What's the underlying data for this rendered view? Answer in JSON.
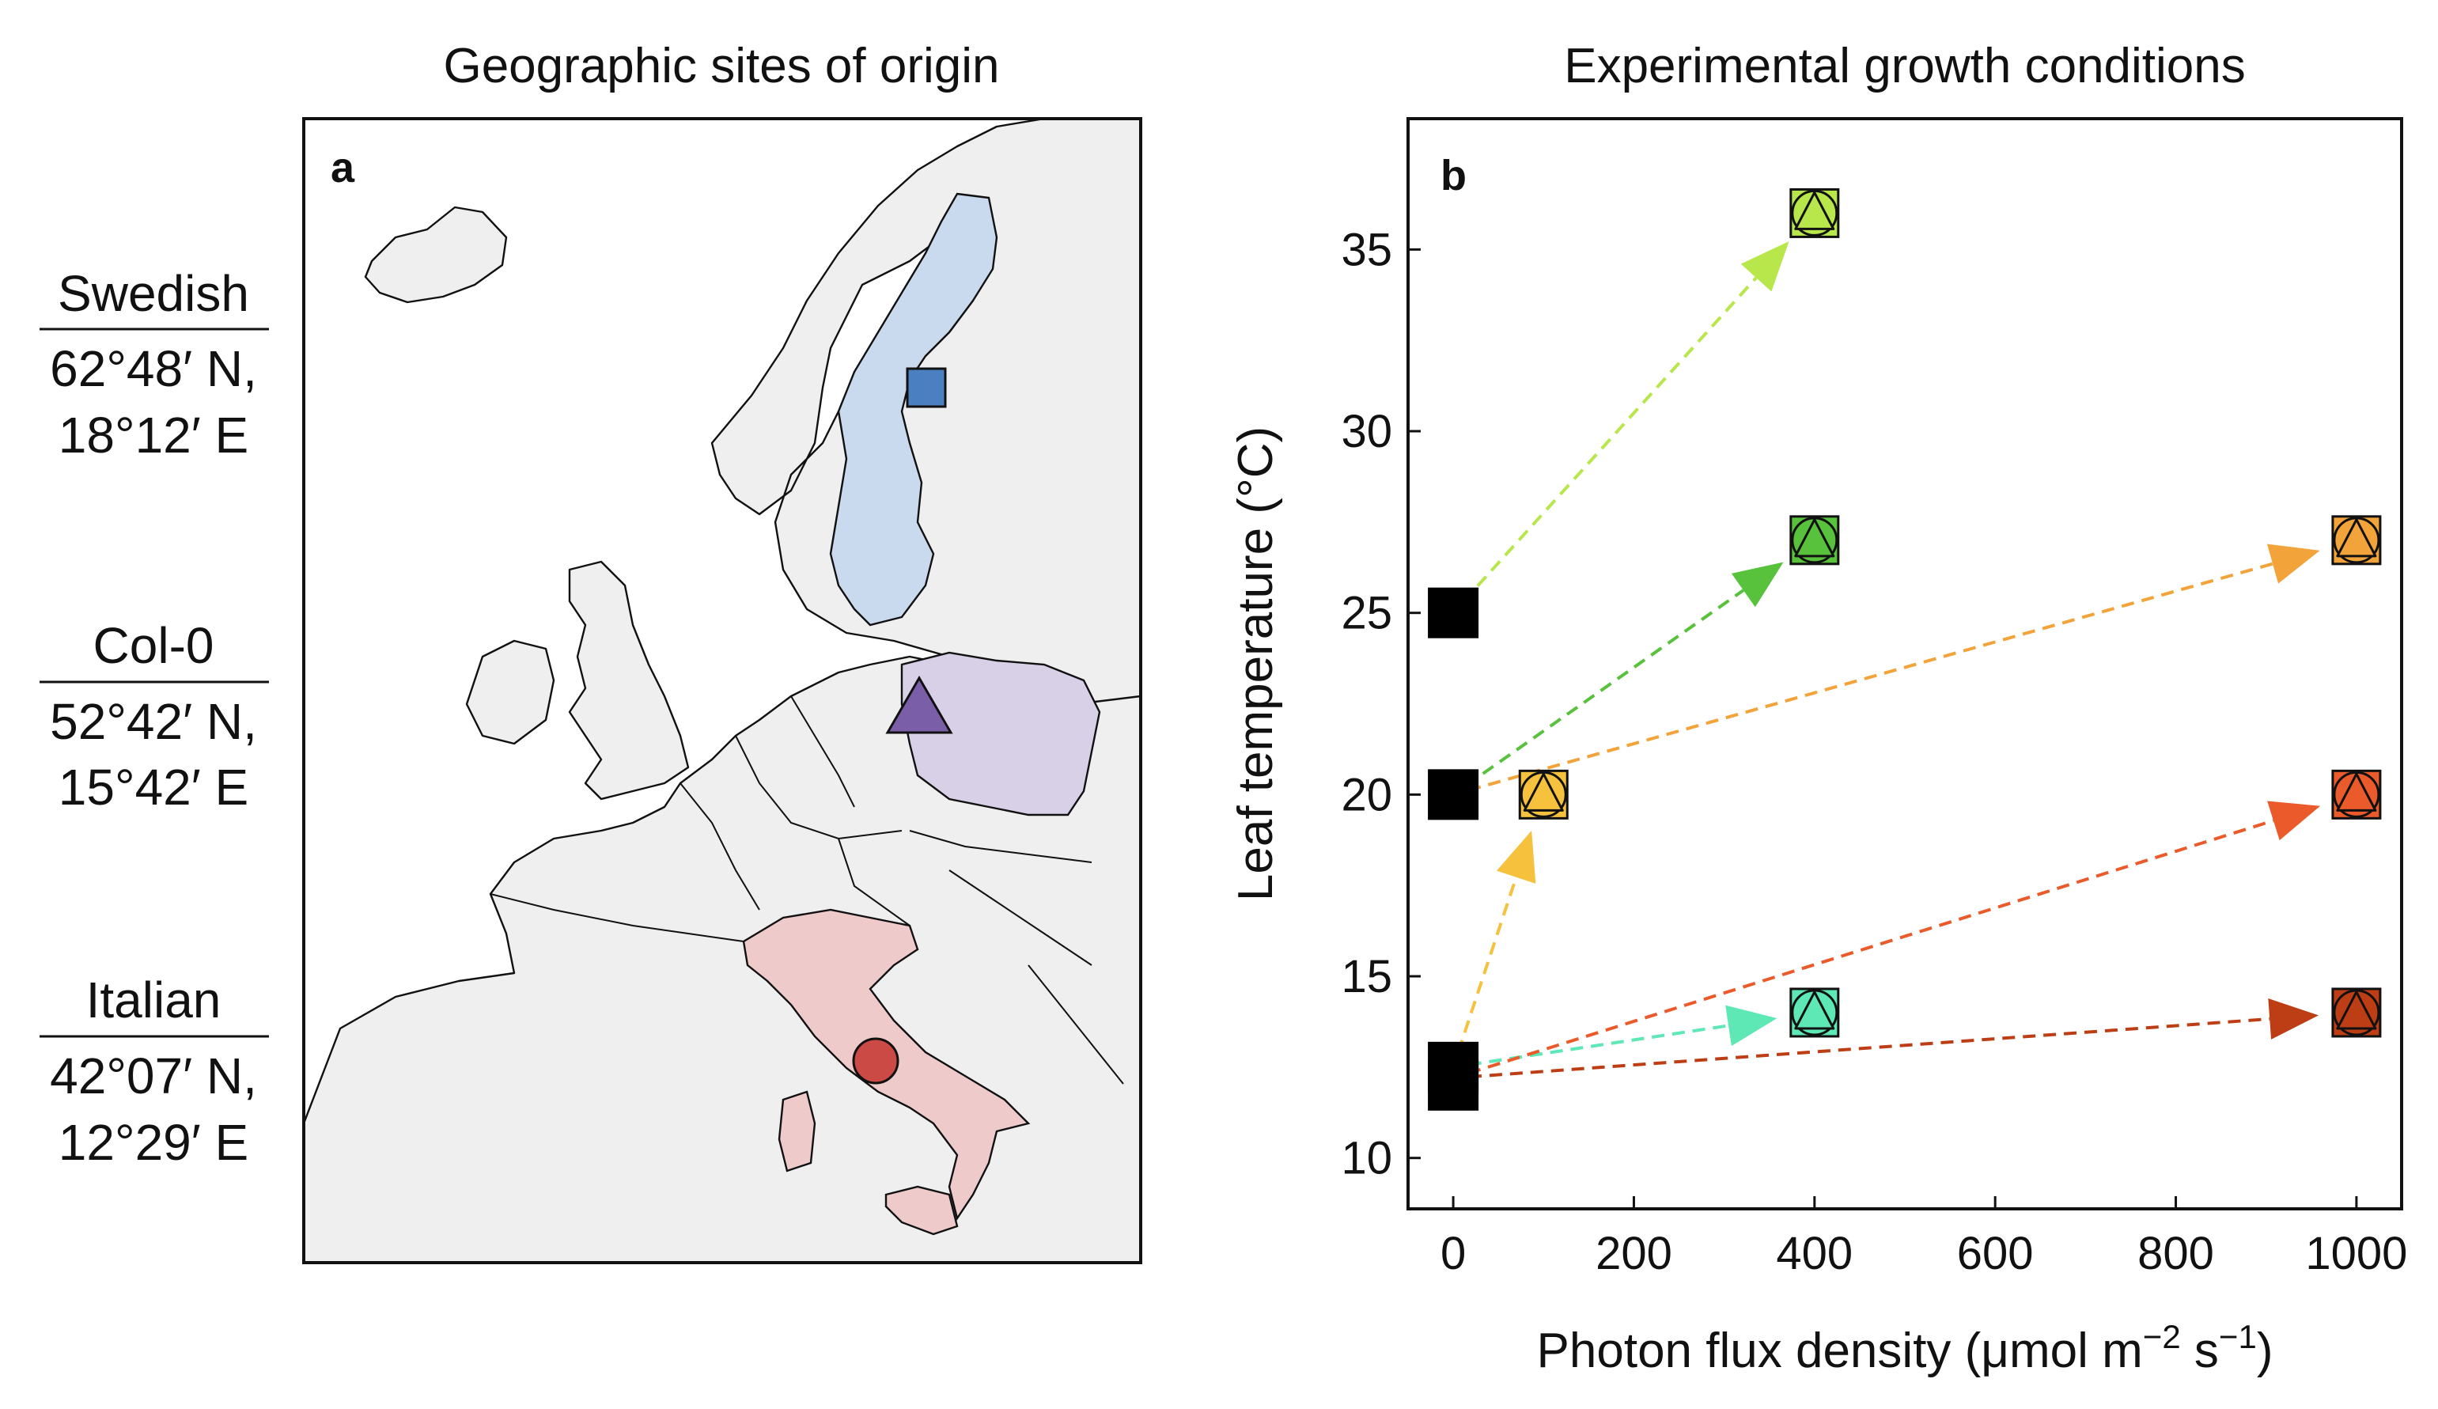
{
  "figure": {
    "panel_a": {
      "title": "Geographic sites of origin",
      "letter": "a",
      "sites": [
        {
          "name": "Swedish",
          "lat": "62°48′ N,",
          "lon": "18°12′ E",
          "marker": "square",
          "color": "#4a7fc1",
          "region_color": "#c9d9ee"
        },
        {
          "name": "Col-0",
          "lat": "52°42′ N,",
          "lon": "15°42′ E",
          "marker": "triangle",
          "color": "#7b5ea8",
          "region_color": "#d8d0e6"
        },
        {
          "name": "Italian",
          "lat": "42°07′ N,",
          "lon": "12°29′ E",
          "marker": "circle",
          "color": "#cc4a45",
          "region_color": "#efcaca"
        }
      ]
    }
  },
  "chart_data": {
    "type": "scatter",
    "title": "Experimental growth conditions",
    "panel_letter": "b",
    "xlabel": "Photon flux density (μmol m",
    "xlabel_sup1": "−2",
    "xlabel_mid": " s",
    "xlabel_sup2": "−1",
    "xlabel_end": ")",
    "ylabel": "Leaf temperature (°C)",
    "xlim": [
      -50,
      1050
    ],
    "ylim": [
      8.6,
      38.6
    ],
    "xticks": [
      0,
      200,
      400,
      600,
      800,
      1000
    ],
    "yticks": [
      10,
      15,
      20,
      25,
      30,
      35
    ],
    "origins": [
      {
        "x": 0,
        "y": 25
      },
      {
        "x": 0,
        "y": 20
      },
      {
        "x": 0,
        "y": 12.5
      },
      {
        "x": 0,
        "y": 12
      }
    ],
    "arrows": [
      {
        "from": [
          0,
          25
        ],
        "to": [
          400,
          36
        ],
        "color": "#b7e74a"
      },
      {
        "from": [
          0,
          20
        ],
        "to": [
          400,
          27
        ],
        "color": "#58c23c"
      },
      {
        "from": [
          0,
          20
        ],
        "to": [
          1000,
          27
        ],
        "color": "#f2a33a"
      },
      {
        "from": [
          0,
          12.5
        ],
        "to": [
          100,
          20
        ],
        "color": "#f6c23e"
      },
      {
        "from": [
          0,
          12.5
        ],
        "to": [
          400,
          14
        ],
        "color": "#5ee8b6"
      },
      {
        "from": [
          0,
          12.2
        ],
        "to": [
          1000,
          20
        ],
        "color": "#ea5a2a"
      },
      {
        "from": [
          0,
          12.2
        ],
        "to": [
          1000,
          14
        ],
        "color": "#bd3d14"
      }
    ],
    "targets": [
      {
        "x": 400,
        "y": 36,
        "color": "#b7e74a"
      },
      {
        "x": 400,
        "y": 27,
        "color": "#58c23c"
      },
      {
        "x": 1000,
        "y": 27,
        "color": "#f2a33a"
      },
      {
        "x": 100,
        "y": 20,
        "color": "#f6c23e"
      },
      {
        "x": 1000,
        "y": 20,
        "color": "#ea5a2a"
      },
      {
        "x": 400,
        "y": 14,
        "color": "#5ee8b6"
      },
      {
        "x": 1000,
        "y": 14,
        "color": "#bd3d14"
      }
    ]
  }
}
